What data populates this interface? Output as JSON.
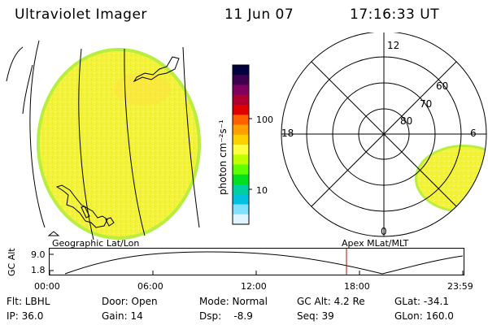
{
  "header": {
    "instrument": "Ultraviolet Imager",
    "date": "11 Jun 07",
    "time": "17:16:33 UT"
  },
  "colorbar": {
    "unit_label": "photon cm⁻²s⁻¹",
    "tick_100": "100",
    "tick_10": "10",
    "colors_top_to_bottom": [
      "#000040",
      "#400050",
      "#800060",
      "#b00030",
      "#e00000",
      "#ff6000",
      "#ffa000",
      "#ffd000",
      "#ffff40",
      "#c0ff00",
      "#60ff00",
      "#00e020",
      "#00d0a0",
      "#00c0e0",
      "#80e0ff",
      "#e0f4ff"
    ]
  },
  "polar": {
    "mlt_labels": {
      "top": "12",
      "left": "18",
      "right": "6",
      "bottom": "0"
    },
    "lat_labels": [
      "60",
      "70",
      "80"
    ]
  },
  "timeline": {
    "axis_label": "GC Alt",
    "y_top": "9.0",
    "y_bottom": "1.8",
    "left_title": "Geographic Lat/Lon",
    "right_title": "Apex MLat/MLT",
    "ticks": [
      "00:00",
      "06:00",
      "12:00",
      "18:00",
      "23:59"
    ],
    "marker_color": "#c00000"
  },
  "status": {
    "flt": "Flt: LBHL",
    "door": "Door: Open",
    "mode": "Mode: Normal",
    "gc_alt": "GC Alt: 4.2 Re",
    "glat": "GLat: -34.1",
    "ip": "IP: 36.0",
    "gain": "Gain: 14",
    "dsp": "Dsp:    -8.9",
    "seq": "Seq: 39",
    "glon": "GLon: 160.0"
  }
}
